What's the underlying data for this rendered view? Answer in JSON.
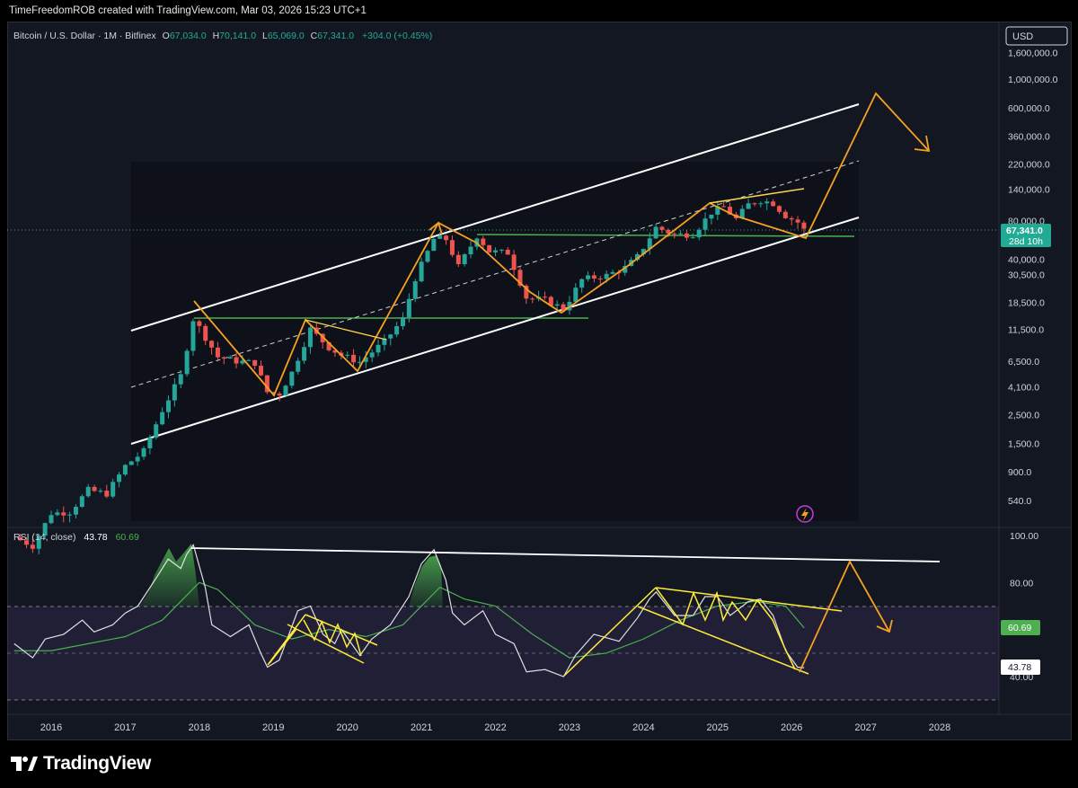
{
  "header": {
    "text": "TimeFreedomROB created with TradingView.com, Mar 03, 2026 15:23 UTC+1"
  },
  "legend": {
    "symbol": "Bitcoin / U.S. Dollar · 1M · Bitfinex",
    "o_label": "O",
    "o_value": "67,034.0",
    "h_label": "H",
    "h_value": "70,141.0",
    "l_label": "L",
    "l_value": "65,069.0",
    "c_label": "C",
    "c_value": "67,341.0",
    "change": "+304.0 (+0.45%)"
  },
  "currency_button": "USD",
  "price_badge": {
    "price": "67,341.0",
    "countdown": "28d 10h"
  },
  "rsi_legend": {
    "name": "RSI (14, close)",
    "value": "43.78",
    "ma_value": "60.69"
  },
  "rsi_badges": {
    "ma": "60.69",
    "rsi": "43.78"
  },
  "footer": {
    "brand": "TradingView"
  },
  "colors": {
    "up": "#26a69a",
    "down": "#ef5350",
    "orange": "#f7a121",
    "yellow": "#ffeb3b",
    "green_line": "#4caf50",
    "channel": "#ffffff",
    "rsi_line": "#e0e0e0",
    "rsi_ma": "#4caf50",
    "rsi_band": "#7e57c2",
    "badge_green": "#22ab94"
  },
  "chart_data": [
    {
      "type": "candlestick",
      "scale": "log",
      "x_ticks": [
        "2016",
        "2017",
        "2018",
        "2019",
        "2020",
        "2021",
        "2022",
        "2023",
        "2024",
        "2025",
        "2026",
        "2027",
        "2028"
      ],
      "y_ticks": [
        "1,600,000.0",
        "1,000,000.0",
        "600,000.0",
        "360,000.0",
        "220,000.0",
        "140,000.0",
        "80,000.0",
        "40,000.0",
        "30,500.0",
        "18,500.0",
        "11,500.0",
        "6,500.0",
        "4,100.0",
        "2,500.0",
        "1,500.0",
        "900.0",
        "540.0"
      ],
      "y_tick_values": [
        1600000,
        1000000,
        600000,
        360000,
        220000,
        140000,
        80000,
        40000,
        30500,
        18500,
        11500,
        6500,
        4100,
        2500,
        1500,
        900,
        540
      ],
      "series_monthly_close": [
        {
          "t": 2015.5,
          "c": 280
        },
        {
          "t": 2015.75,
          "c": 240
        },
        {
          "t": 2016.0,
          "c": 430
        },
        {
          "t": 2016.25,
          "c": 440
        },
        {
          "t": 2016.5,
          "c": 650
        },
        {
          "t": 2016.75,
          "c": 610
        },
        {
          "t": 2017.0,
          "c": 1000
        },
        {
          "t": 2017.25,
          "c": 1300
        },
        {
          "t": 2017.5,
          "c": 2700
        },
        {
          "t": 2017.75,
          "c": 5000
        },
        {
          "t": 2017.92,
          "c": 14000
        },
        {
          "t": 2018.08,
          "c": 10000
        },
        {
          "t": 2018.25,
          "c": 7000
        },
        {
          "t": 2018.5,
          "c": 6500
        },
        {
          "t": 2018.75,
          "c": 6300
        },
        {
          "t": 2018.92,
          "c": 3700
        },
        {
          "t": 2019.08,
          "c": 3600
        },
        {
          "t": 2019.25,
          "c": 5300
        },
        {
          "t": 2019.5,
          "c": 11500
        },
        {
          "t": 2019.75,
          "c": 8300
        },
        {
          "t": 2019.92,
          "c": 7200
        },
        {
          "t": 2020.17,
          "c": 6400
        },
        {
          "t": 2020.5,
          "c": 9200
        },
        {
          "t": 2020.75,
          "c": 13800
        },
        {
          "t": 2020.92,
          "c": 29000
        },
        {
          "t": 2021.17,
          "c": 58000
        },
        {
          "t": 2021.33,
          "c": 57700
        },
        {
          "t": 2021.5,
          "c": 35000
        },
        {
          "t": 2021.75,
          "c": 61000
        },
        {
          "t": 2021.92,
          "c": 46000
        },
        {
          "t": 2022.17,
          "c": 45000
        },
        {
          "t": 2022.42,
          "c": 20000
        },
        {
          "t": 2022.67,
          "c": 19400
        },
        {
          "t": 2022.92,
          "c": 16500
        },
        {
          "t": 2023.17,
          "c": 28000
        },
        {
          "t": 2023.5,
          "c": 30000
        },
        {
          "t": 2023.75,
          "c": 34500
        },
        {
          "t": 2023.92,
          "c": 42000
        },
        {
          "t": 2024.17,
          "c": 71000
        },
        {
          "t": 2024.42,
          "c": 62000
        },
        {
          "t": 2024.67,
          "c": 63000
        },
        {
          "t": 2024.92,
          "c": 93000
        },
        {
          "t": 2025.08,
          "c": 102000
        },
        {
          "t": 2025.25,
          "c": 82000
        },
        {
          "t": 2025.42,
          "c": 107000
        },
        {
          "t": 2025.58,
          "c": 115000
        },
        {
          "t": 2025.75,
          "c": 109000
        },
        {
          "t": 2025.92,
          "c": 87000
        },
        {
          "t": 2026.08,
          "c": 78000
        },
        {
          "t": 2026.17,
          "c": 67341
        }
      ],
      "last_price": 67341
    },
    {
      "type": "line",
      "name": "RSI (14, close)",
      "ylim": [
        30,
        100
      ],
      "y_ticks": [
        "100.00",
        "80.00",
        "40.00"
      ],
      "y_tick_values": [
        100,
        80,
        40
      ],
      "bands": [
        70,
        50,
        30
      ],
      "rsi": [
        [
          2015.5,
          54
        ],
        [
          2015.75,
          48
        ],
        [
          2015.92,
          56
        ],
        [
          2016.17,
          58
        ],
        [
          2016.42,
          64
        ],
        [
          2016.58,
          59
        ],
        [
          2016.83,
          62
        ],
        [
          2017.0,
          67
        ],
        [
          2017.17,
          70
        ],
        [
          2017.42,
          82
        ],
        [
          2017.58,
          90
        ],
        [
          2017.75,
          86
        ],
        [
          2017.83,
          92
        ],
        [
          2017.92,
          96
        ],
        [
          2018.08,
          78
        ],
        [
          2018.17,
          62
        ],
        [
          2018.42,
          57
        ],
        [
          2018.67,
          62
        ],
        [
          2018.83,
          50
        ],
        [
          2018.92,
          44
        ],
        [
          2019.08,
          47
        ],
        [
          2019.33,
          68
        ],
        [
          2019.5,
          70
        ],
        [
          2019.67,
          58
        ],
        [
          2019.83,
          54
        ],
        [
          2019.92,
          60
        ],
        [
          2020.17,
          49
        ],
        [
          2020.33,
          56
        ],
        [
          2020.58,
          62
        ],
        [
          2020.83,
          74
        ],
        [
          2021.0,
          88
        ],
        [
          2021.17,
          94
        ],
        [
          2021.33,
          81
        ],
        [
          2021.42,
          67
        ],
        [
          2021.58,
          62
        ],
        [
          2021.83,
          68
        ],
        [
          2022.0,
          58
        ],
        [
          2022.25,
          54
        ],
        [
          2022.42,
          42
        ],
        [
          2022.67,
          43
        ],
        [
          2022.92,
          40
        ],
        [
          2023.08,
          49
        ],
        [
          2023.33,
          58
        ],
        [
          2023.67,
          55
        ],
        [
          2023.92,
          65
        ],
        [
          2024.08,
          73
        ],
        [
          2024.17,
          76
        ],
        [
          2024.42,
          66
        ],
        [
          2024.67,
          66
        ],
        [
          2024.83,
          74
        ],
        [
          2025.0,
          74
        ],
        [
          2025.17,
          66
        ],
        [
          2025.42,
          72
        ],
        [
          2025.58,
          73
        ],
        [
          2025.75,
          66
        ],
        [
          2025.92,
          51
        ],
        [
          2026.08,
          44
        ],
        [
          2026.17,
          43.78
        ]
      ],
      "ma": [
        [
          2015.5,
          51
        ],
        [
          2016.0,
          51
        ],
        [
          2016.5,
          54
        ],
        [
          2017.0,
          57
        ],
        [
          2017.5,
          64
        ],
        [
          2018.0,
          80
        ],
        [
          2018.25,
          77
        ],
        [
          2018.75,
          62
        ],
        [
          2019.25,
          56
        ],
        [
          2019.75,
          60
        ],
        [
          2020.25,
          57
        ],
        [
          2020.75,
          62
        ],
        [
          2021.25,
          78
        ],
        [
          2021.58,
          73
        ],
        [
          2022.0,
          70
        ],
        [
          2022.5,
          58
        ],
        [
          2023.0,
          48
        ],
        [
          2023.5,
          50
        ],
        [
          2024.0,
          56
        ],
        [
          2024.5,
          64
        ],
        [
          2025.0,
          70
        ],
        [
          2025.5,
          72
        ],
        [
          2025.92,
          70
        ],
        [
          2026.17,
          60.69
        ]
      ]
    }
  ]
}
